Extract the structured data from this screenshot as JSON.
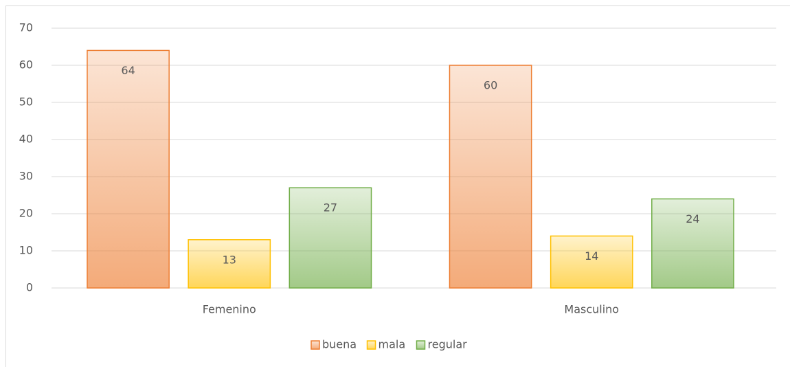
{
  "chart_data": {
    "type": "bar",
    "categories": [
      "Femenino",
      "Masculino"
    ],
    "series": [
      {
        "name": "buena",
        "color": "#ed7d31",
        "values": [
          64,
          60
        ]
      },
      {
        "name": "mala",
        "color": "#ffc000",
        "values": [
          13,
          14
        ]
      },
      {
        "name": "regular",
        "color": "#70ad47",
        "values": [
          27,
          24
        ]
      }
    ],
    "ylim": [
      0,
      70
    ],
    "yticks": [
      0,
      10,
      20,
      30,
      40,
      50,
      60,
      70
    ],
    "grid": true,
    "legend": "bottom"
  }
}
